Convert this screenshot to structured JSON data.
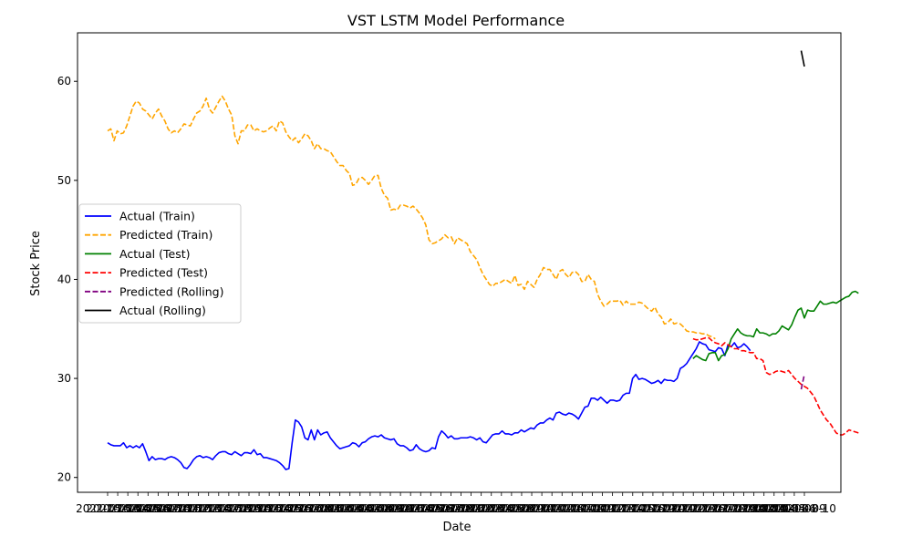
{
  "chart_data": {
    "type": "line",
    "title": "VST LSTM Model Performance",
    "xlabel": "Date",
    "ylabel": "Stock Price",
    "ylim": [
      18.5,
      64.9
    ],
    "n_points": 220,
    "y_ticks": [
      20,
      30,
      40,
      50,
      60
    ],
    "x_tick_labels": [
      "2021-05-03",
      "2021-05-04",
      "2021-05-05",
      "2021-05-06",
      "2021-05-07",
      "2021-05-10",
      "2021-05-11",
      "2021-05-12",
      "2021-05-13",
      "2021-05-14",
      "2021-05-17",
      "2021-05-18",
      "2021-05-19",
      "2021-05-20",
      "2021-05-21",
      "2021-05-24",
      "2021-05-25",
      "2021-05-26",
      "2021-05-27",
      "2021-05-28",
      "2021-06-01",
      "2021-06-02",
      "2021-06-03",
      "2021-06-04",
      "2021-06-07",
      "2021-06-08",
      "2021-06-09",
      "2021-06-10",
      "2021-06-11",
      "2021-06-14",
      "2021-06-15",
      "2021-06-16",
      "2021-06-17",
      "2021-06-18",
      "2021-06-21",
      "2021-06-22",
      "2021-06-23",
      "2021-06-24",
      "2021-06-25",
      "2021-06-28",
      "2021-06-29",
      "2021-06-30",
      "2021-07-01",
      "2021-07-02",
      "2021-07-06",
      "2021-07-07",
      "2021-07-08",
      "2021-07-09",
      "2021-07-12",
      "2021-07-13",
      "2021-07-14",
      "2021-07-15",
      "2021-07-16",
      "2021-07-19",
      "2021-07-20",
      "2021-07-21",
      "2021-07-22",
      "2021-07-23",
      "2021-07-26",
      "2021-07-27",
      "2021-07-28",
      "2021-07-29",
      "2021-07-30",
      "2021-08-02",
      "2021-08-03",
      "2021-08-04",
      "2021-08-05",
      "2021-08-06",
      "2021-08-09",
      "2021-08-10"
    ],
    "legend": {
      "placement": "center-left",
      "entries": [
        "Actual (Train)",
        "Predicted (Train)",
        "Actual (Test)",
        "Predicted (Test)",
        "Predicted (Rolling)",
        "Actual (Rolling)"
      ]
    },
    "series": [
      {
        "name": "Actual (Train)",
        "color": "#0000ff",
        "style": "solid",
        "x_start": 0,
        "values": [
          23.5,
          23.3,
          23.2,
          23.2,
          23.2,
          23.5,
          23.0,
          23.2,
          23.0,
          23.2,
          23.0,
          23.4,
          22.6,
          21.7,
          22.1,
          21.8,
          21.9,
          21.9,
          21.8,
          22.0,
          22.1,
          22.0,
          21.8,
          21.5,
          21.0,
          20.9,
          21.3,
          21.8,
          22.1,
          22.2,
          22.0,
          22.1,
          22.0,
          21.8,
          22.2,
          22.5,
          22.6,
          22.6,
          22.4,
          22.3,
          22.6,
          22.4,
          22.2,
          22.5,
          22.5,
          22.4,
          22.8,
          22.3,
          22.4,
          22.0,
          22.0,
          21.9,
          21.8,
          21.7,
          21.5,
          21.2,
          20.8,
          20.9,
          23.5,
          25.8,
          25.6,
          25.1,
          24.0,
          23.8,
          24.8,
          23.8,
          24.8,
          24.3,
          24.5,
          24.6,
          24.0,
          23.6,
          23.2,
          22.9,
          23.0,
          23.1,
          23.2,
          23.5,
          23.4,
          23.1,
          23.5,
          23.6,
          23.9,
          24.1,
          24.2,
          24.1,
          24.3,
          24.0,
          23.9,
          23.8,
          23.9,
          23.4,
          23.2,
          23.2,
          23.0,
          22.7,
          22.8,
          23.3,
          22.9,
          22.7,
          22.6,
          22.7,
          23.0,
          22.9,
          24.1,
          24.7,
          24.4,
          24.0,
          24.2,
          23.9,
          23.9,
          24.0,
          24.0,
          24.0,
          24.1,
          24.0,
          23.8,
          24.0,
          23.6,
          23.5,
          23.9,
          24.3,
          24.4,
          24.4,
          24.7,
          24.4,
          24.4,
          24.3,
          24.5,
          24.5,
          24.8,
          24.6,
          24.8,
          25.0,
          24.9,
          25.3,
          25.5,
          25.5,
          25.8,
          26.0,
          25.8,
          26.5,
          26.6,
          26.4,
          26.3,
          26.5,
          26.4,
          26.2,
          25.9,
          26.5,
          27.1,
          27.2,
          28.0,
          28.0,
          27.8,
          28.1,
          27.8,
          27.5,
          27.8,
          27.8,
          27.7,
          27.8,
          28.3,
          28.5,
          28.5,
          30.0,
          30.4,
          29.9,
          30.0,
          29.9,
          29.7,
          29.5,
          29.6,
          29.8,
          29.5,
          29.9,
          29.8,
          29.8,
          29.7,
          30.0,
          31.0,
          31.2,
          31.5,
          32.0,
          32.5,
          33.0,
          33.7,
          33.5,
          33.4,
          32.9,
          32.8,
          32.7,
          33.1,
          33.0,
          32.3,
          33.4,
          33.2,
          33.6,
          33.1,
          33.2,
          33.5,
          33.2,
          32.8
        ]
      },
      {
        "name": "Predicted (Train)",
        "color": "#ffa500",
        "style": "dashed",
        "x_start": 0,
        "values": [
          55.0,
          55.2,
          54.0,
          55.0,
          54.7,
          54.8,
          55.5,
          56.5,
          57.5,
          58.0,
          57.8,
          57.2,
          57.0,
          56.6,
          56.2,
          56.8,
          57.2,
          56.5,
          56.0,
          55.2,
          54.8,
          55.0,
          54.8,
          55.2,
          55.7,
          55.6,
          55.5,
          56.2,
          56.8,
          57.0,
          57.5,
          58.3,
          57.2,
          56.8,
          57.4,
          58.0,
          58.5,
          58.0,
          57.2,
          56.6,
          54.5,
          53.7,
          55.0,
          55.0,
          55.6,
          55.6,
          55.0,
          55.2,
          55.0,
          54.9,
          55.0,
          55.3,
          55.5,
          55.0,
          56.0,
          55.8,
          54.9,
          54.4,
          54.0,
          54.3,
          53.8,
          54.2,
          54.7,
          54.5,
          54.0,
          53.2,
          53.7,
          53.2,
          53.2,
          53.0,
          52.9,
          52.4,
          51.9,
          51.5,
          51.5,
          51.0,
          50.7,
          49.5,
          49.6,
          50.2,
          50.3,
          50.0,
          49.6,
          50.0,
          50.5,
          50.5,
          49.2,
          48.5,
          48.2,
          47.0,
          47.1,
          47.0,
          47.5,
          47.5,
          47.4,
          47.2,
          47.4,
          47.1,
          46.7,
          46.2,
          45.5,
          44.0,
          43.6,
          43.7,
          43.9,
          44.1,
          44.5,
          44.2,
          44.3,
          43.6,
          44.2,
          44.0,
          43.8,
          43.6,
          42.8,
          42.4,
          42.0,
          41.2,
          40.5,
          40.0,
          39.5,
          39.3,
          39.6,
          39.6,
          39.8,
          40.0,
          39.8,
          39.6,
          40.4,
          39.4,
          39.5,
          39.0,
          39.8,
          39.5,
          39.2,
          40.0,
          40.5,
          41.2,
          41.0,
          41.0,
          40.5,
          40.0,
          40.8,
          41.0,
          40.5,
          40.2,
          40.7,
          40.8,
          40.5,
          39.8,
          39.8,
          40.5,
          40.0,
          39.8,
          38.5,
          37.8,
          37.3,
          37.5,
          37.8,
          37.8,
          37.8,
          37.9,
          37.4,
          37.8,
          37.5,
          37.5,
          37.5,
          37.7,
          37.6,
          37.3,
          37.0,
          36.8,
          37.2,
          36.5,
          36.2,
          35.5,
          35.6,
          36.0,
          35.5,
          35.6,
          35.5,
          35.2,
          34.8,
          34.7,
          34.7,
          34.6,
          34.6,
          34.5,
          34.5,
          34.3,
          34.2,
          34.0
        ]
      },
      {
        "name": "Actual (Test)",
        "color": "#008000",
        "style": "solid",
        "x_start": 184,
        "values": [
          32.0,
          32.3,
          32.1,
          31.9,
          31.8,
          32.5,
          32.6,
          32.6,
          31.8,
          32.3,
          32.4,
          33.0,
          34.0,
          34.5,
          35.0,
          34.6,
          34.4,
          34.3,
          34.3,
          34.2,
          35.0,
          34.6,
          34.6,
          34.5,
          34.3,
          34.5,
          34.5,
          34.8,
          35.3,
          35.1,
          34.9,
          35.4,
          36.2,
          36.9,
          37.1,
          36.1,
          36.9,
          36.8,
          36.8,
          37.3,
          37.8,
          37.5,
          37.5,
          37.6,
          37.7,
          37.6,
          37.8,
          38.0,
          38.2,
          38.3,
          38.7,
          38.8,
          38.6
        ]
      },
      {
        "name": "Predicted (Test)",
        "color": "#ff0000",
        "style": "dashed",
        "x_start": 184,
        "values": [
          34.0,
          33.9,
          33.9,
          34.0,
          34.1,
          34.1,
          33.8,
          33.6,
          33.5,
          33.3,
          33.6,
          33.4,
          33.2,
          33.0,
          33.0,
          32.8,
          32.8,
          32.7,
          32.6,
          32.6,
          32.0,
          32.0,
          31.8,
          30.6,
          30.4,
          30.5,
          30.7,
          30.8,
          30.7,
          30.6,
          30.8,
          30.4,
          30.0,
          29.7,
          29.4,
          29.2,
          29.0,
          28.6,
          28.2,
          27.5,
          26.8,
          26.3,
          25.8,
          25.5,
          25.0,
          24.5,
          24.3,
          24.3,
          24.5,
          24.8,
          24.7,
          24.6,
          24.5
        ]
      },
      {
        "name": "Predicted (Rolling)",
        "color": "#800080",
        "style": "dashed",
        "x_start": 218,
        "values": [
          28.9,
          30.4
        ]
      },
      {
        "name": "Actual (Rolling)",
        "color": "#000000",
        "style": "solid",
        "x_start": 218,
        "values": [
          63.1,
          61.5
        ]
      }
    ]
  }
}
